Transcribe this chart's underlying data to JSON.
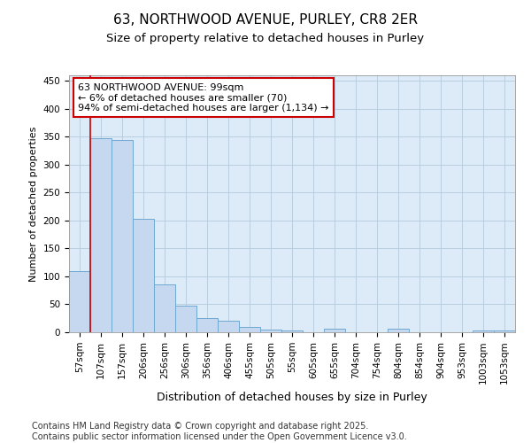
{
  "title_line1": "63, NORTHWOOD AVENUE, PURLEY, CR8 2ER",
  "title_line2": "Size of property relative to detached houses in Purley",
  "xlabel": "Distribution of detached houses by size in Purley",
  "ylabel": "Number of detached properties",
  "bar_labels": [
    "57sqm",
    "107sqm",
    "157sqm",
    "206sqm",
    "256sqm",
    "306sqm",
    "356sqm",
    "406sqm",
    "455sqm",
    "505sqm",
    "55sqm",
    "605sqm",
    "655sqm",
    "704sqm",
    "754sqm",
    "804sqm",
    "854sqm",
    "904sqm",
    "953sqm",
    "1003sqm",
    "1053sqm"
  ],
  "bar_values": [
    110,
    348,
    345,
    203,
    85,
    47,
    25,
    20,
    10,
    5,
    3,
    0,
    7,
    0,
    0,
    7,
    0,
    0,
    0,
    3,
    3
  ],
  "bar_color": "#c5d8f0",
  "bar_edge_color": "#6fa8d0",
  "bar_linewidth": 0.7,
  "vline_color": "#cc0000",
  "vline_x_index": 1,
  "annotation_text": "63 NORTHWOOD AVENUE: 99sqm\n← 6% of detached houses are smaller (70)\n94% of semi-detached houses are larger (1,134) →",
  "annotation_box_color": "#cc0000",
  "ylim": [
    0,
    460
  ],
  "yticks": [
    0,
    50,
    100,
    150,
    200,
    250,
    300,
    350,
    400,
    450
  ],
  "grid_color": "#b8cfe0",
  "background_color": "#ddeaf8",
  "footer_text": "Contains HM Land Registry data © Crown copyright and database right 2025.\nContains public sector information licensed under the Open Government Licence v3.0.",
  "title_fontsize": 11,
  "subtitle_fontsize": 9.5,
  "axis_label_fontsize": 9,
  "tick_fontsize": 7.5,
  "ylabel_fontsize": 8,
  "annotation_fontsize": 8,
  "footer_fontsize": 7
}
